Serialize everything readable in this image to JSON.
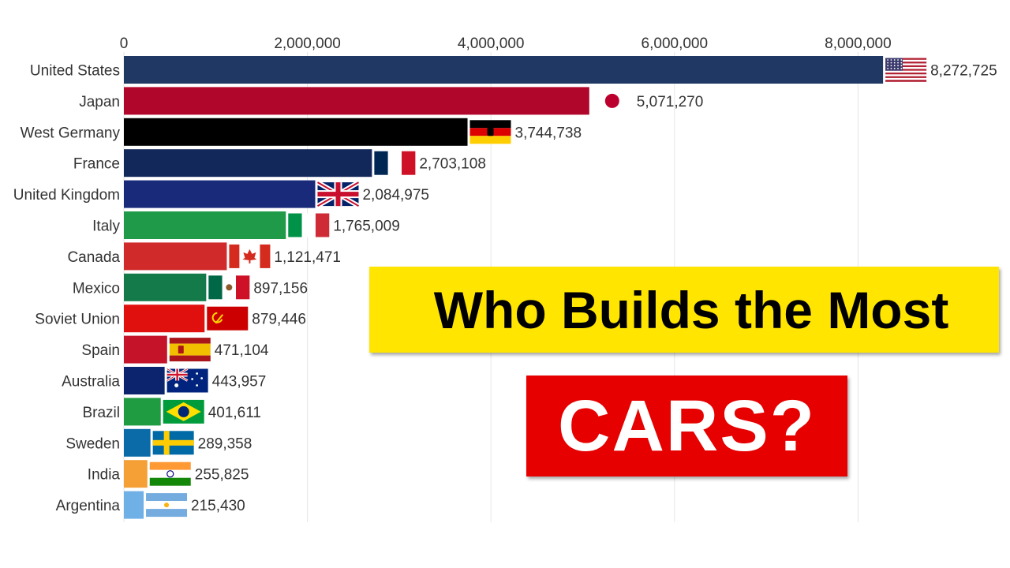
{
  "headline": {
    "line1": "Who Builds the Most",
    "line2": "CARS?"
  },
  "chart_data": {
    "type": "bar",
    "orientation": "horizontal",
    "xlim": [
      0,
      8700000
    ],
    "xticks": [
      0,
      2000000,
      4000000,
      6000000,
      8000000
    ],
    "xtick_labels": [
      "0",
      "2,000,000",
      "4,000,000",
      "6,000,000",
      "8,000,000"
    ],
    "grid": true,
    "categories": [
      "United States",
      "Japan",
      "West Germany",
      "France",
      "United Kingdom",
      "Italy",
      "Canada",
      "Mexico",
      "Soviet Union",
      "Spain",
      "Australia",
      "Brazil",
      "Sweden",
      "India",
      "Argentina"
    ],
    "values": [
      8272725,
      5071270,
      3744738,
      2703108,
      2084975,
      1765009,
      1121471,
      897156,
      879446,
      471104,
      443957,
      401611,
      289358,
      255825,
      215430
    ],
    "value_labels": [
      "8,272,725",
      "5,071,270",
      "3,744,738",
      "2,703,108",
      "2,084,975",
      "1,765,009",
      "1,121,471",
      "897,156",
      "879,446",
      "471,104",
      "443,957",
      "401,611",
      "289,358",
      "255,825",
      "215,430"
    ],
    "colors": [
      "#1f3864",
      "#b0062b",
      "#000000",
      "#12285a",
      "#1a2a7a",
      "#1e9a48",
      "#d12a2a",
      "#157a4a",
      "#e0100e",
      "#c5142a",
      "#0b246d",
      "#1f9b41",
      "#0a6ba8",
      "#f4a037",
      "#6fb0e6"
    ],
    "flags": [
      "us-flag-icon",
      "japan-flag-icon",
      "germany-flag-icon",
      "france-flag-icon",
      "uk-flag-icon",
      "italy-flag-icon",
      "canada-flag-icon",
      "mexico-flag-icon",
      "soviet-flag-icon",
      "spain-flag-icon",
      "australia-flag-icon",
      "brazil-flag-icon",
      "sweden-flag-icon",
      "india-flag-icon",
      "argentina-flag-icon"
    ]
  }
}
